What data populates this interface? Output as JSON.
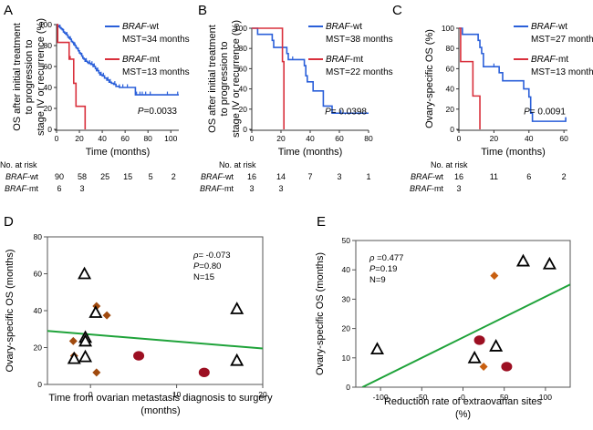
{
  "figure": {
    "chart_data": [
      {
        "panel": "A",
        "type": "line",
        "subtype": "kaplan-meier",
        "xlabel": "Time (months)",
        "ylabel_lines": [
          "OS after initial treatment",
          "to progression to",
          "stage IV or recurrence (%)"
        ],
        "xlim": [
          0,
          107
        ],
        "ylim": [
          0,
          100
        ],
        "xticks": [
          0,
          20,
          40,
          60,
          80,
          100
        ],
        "yticks": [
          0,
          20,
          40,
          60,
          80,
          100
        ],
        "series": [
          {
            "name": "BRAF-wt",
            "name_italic": "BRAF",
            "name_suffix": "-wt",
            "color": "#2a5fd9",
            "legend_note": "MST=34 months",
            "steps": [
              [
                0,
                100
              ],
              [
                1,
                99
              ],
              [
                2,
                98
              ],
              [
                3,
                97
              ],
              [
                4,
                96
              ],
              [
                5,
                95
              ],
              [
                6,
                93
              ],
              [
                7,
                92
              ],
              [
                8,
                91
              ],
              [
                9,
                90
              ],
              [
                10,
                88
              ],
              [
                11,
                87
              ],
              [
                12,
                86
              ],
              [
                13,
                84
              ],
              [
                14,
                83
              ],
              [
                15,
                81
              ],
              [
                16,
                80
              ],
              [
                17,
                78
              ],
              [
                18,
                77
              ],
              [
                19,
                75
              ],
              [
                20,
                73
              ],
              [
                21,
                72
              ],
              [
                22,
                70
              ],
              [
                23,
                68
              ],
              [
                24,
                67
              ],
              [
                25,
                65
              ],
              [
                27,
                64
              ],
              [
                28,
                63
              ],
              [
                30,
                62
              ],
              [
                32,
                60
              ],
              [
                34,
                58
              ],
              [
                35,
                56
              ],
              [
                37,
                54
              ],
              [
                38,
                52
              ],
              [
                40,
                51
              ],
              [
                42,
                49
              ],
              [
                44,
                47
              ],
              [
                46,
                45
              ],
              [
                48,
                44
              ],
              [
                50,
                43
              ],
              [
                52,
                41
              ],
              [
                55,
                40
              ],
              [
                68,
                40
              ],
              [
                69,
                33
              ],
              [
                107,
                33
              ]
            ],
            "censor_x": [
              3,
              6,
              9,
              12,
              16,
              19,
              22,
              26,
              29,
              31,
              33,
              36,
              39,
              41,
              45,
              47,
              51,
              55,
              58,
              62,
              70,
              73,
              75,
              78,
              82,
              97,
              106
            ]
          },
          {
            "name": "BRAF-mt",
            "name_italic": "BRAF",
            "name_suffix": "-mt",
            "color": "#d9303c",
            "legend_note": "MST=13 months",
            "steps": [
              [
                0,
                100
              ],
              [
                1,
                83
              ],
              [
                10,
                83
              ],
              [
                11,
                67
              ],
              [
                14,
                67
              ],
              [
                15,
                44
              ],
              [
                16,
                44
              ],
              [
                17,
                22
              ],
              [
                25,
                22
              ],
              [
                25,
                0
              ]
            ],
            "censor_x": [
              12
            ]
          }
        ],
        "p_label": "P",
        "p_value": "=0.0033",
        "risk_table": {
          "title": "No. at risk",
          "rows": [
            {
              "italic": "BRAF",
              "suffix": "-wt",
              "x": [
                0,
                20,
                40,
                60,
                80,
                100
              ],
              "values": [
                "90",
                "58",
                "25",
                "15",
                "5",
                "2"
              ]
            },
            {
              "italic": "BRAF",
              "suffix": "-mt",
              "x": [
                0,
                20
              ],
              "values": [
                "6",
                "3"
              ]
            }
          ]
        }
      },
      {
        "panel": "B",
        "type": "line",
        "subtype": "kaplan-meier",
        "xlabel": "Time (months)",
        "ylabel_lines": [
          "OS after initial treatment",
          "to progression to",
          "stage IV or recurrence (%)"
        ],
        "xlim": [
          0,
          80
        ],
        "ylim": [
          0,
          100
        ],
        "xticks": [
          0,
          20,
          40,
          60,
          80
        ],
        "yticks": [
          0,
          20,
          40,
          60,
          80,
          100
        ],
        "series": [
          {
            "name": "BRAF-wt",
            "name_italic": "BRAF",
            "name_suffix": "-wt",
            "color": "#2a5fd9",
            "legend_note": "MST=38 months",
            "steps": [
              [
                0,
                100
              ],
              [
                4,
                94
              ],
              [
                13,
                94
              ],
              [
                14,
                88
              ],
              [
                15,
                81
              ],
              [
                23,
                81
              ],
              [
                24,
                75
              ],
              [
                25,
                69
              ],
              [
                35,
                69
              ],
              [
                36,
                63
              ],
              [
                37,
                53
              ],
              [
                38,
                47
              ],
              [
                41,
                47
              ],
              [
                42,
                38
              ],
              [
                49,
                38
              ],
              [
                49,
                23
              ],
              [
                54,
                23
              ],
              [
                55,
                16
              ],
              [
                80,
                16
              ]
            ],
            "censor_x": [
              28,
              61
            ]
          },
          {
            "name": "BRAF-mt",
            "name_italic": "BRAF",
            "name_suffix": "-mt",
            "color": "#d9303c",
            "legend_note": "MST=22 months",
            "steps": [
              [
                0,
                100
              ],
              [
                21,
                100
              ],
              [
                21,
                67
              ],
              [
                22,
                67
              ],
              [
                22,
                0
              ]
            ],
            "censor_x": []
          }
        ],
        "p_label": "P",
        "p_value": "= 0.0398",
        "risk_table": {
          "title": "No. at risk",
          "rows": [
            {
              "italic": "BRAF",
              "suffix": "-wt",
              "x": [
                0,
                20,
                40,
                60,
                80
              ],
              "values": [
                "16",
                "14",
                "7",
                "3",
                "1"
              ]
            },
            {
              "italic": "BRAF",
              "suffix": "-mt",
              "x": [
                0,
                20
              ],
              "values": [
                "3",
                "3"
              ]
            }
          ]
        }
      },
      {
        "panel": "C",
        "type": "line",
        "subtype": "kaplan-meier",
        "xlabel": "Time (months)",
        "ylabel_lines": [
          "Ovary-specific OS (%)"
        ],
        "xlim": [
          0,
          62
        ],
        "ylim": [
          0,
          100
        ],
        "xticks": [
          0,
          20,
          40,
          60
        ],
        "yticks": [
          0,
          20,
          40,
          60,
          80,
          100
        ],
        "series": [
          {
            "name": "BRAF-wt",
            "name_italic": "BRAF",
            "name_suffix": "-wt",
            "color": "#2a5fd9",
            "legend_note": "MST=27 months",
            "steps": [
              [
                0,
                100
              ],
              [
                2,
                94
              ],
              [
                11,
                94
              ],
              [
                11,
                88
              ],
              [
                12,
                81
              ],
              [
                13,
                75
              ],
              [
                14,
                62
              ],
              [
                22,
                62
              ],
              [
                23,
                56
              ],
              [
                25,
                56
              ],
              [
                25,
                48
              ],
              [
                36,
                48
              ],
              [
                37,
                40
              ],
              [
                39,
                40
              ],
              [
                40,
                32
              ],
              [
                41,
                16
              ],
              [
                42,
                8
              ],
              [
                61,
                8
              ],
              [
                61,
                12
              ]
            ],
            "censor_x": [
              20
            ]
          },
          {
            "name": "BRAF-mt",
            "name_italic": "BRAF",
            "name_suffix": "-mt",
            "color": "#d9303c",
            "legend_note": "MST=13 months",
            "steps": [
              [
                0,
                100
              ],
              [
                1,
                67
              ],
              [
                8,
                67
              ],
              [
                8,
                33
              ],
              [
                12,
                33
              ],
              [
                12,
                0
              ]
            ],
            "censor_x": []
          }
        ],
        "p_label": "P",
        "p_value": "= 0.0091",
        "risk_table": {
          "title": "No. at risk",
          "rows": [
            {
              "italic": "BRAF",
              "suffix": "-wt",
              "x": [
                0,
                20,
                40,
                60
              ],
              "values": [
                "16",
                "11",
                "6",
                "2"
              ]
            },
            {
              "italic": "BRAF",
              "suffix": "-mt",
              "x": [
                0
              ],
              "values": [
                "3"
              ]
            }
          ]
        }
      },
      {
        "panel": "D",
        "type": "scatter",
        "xlabel_lines": [
          "Time from ovarian metastasis diagnosis to surgery",
          "(months)"
        ],
        "ylabel": "Ovary-specific OS (months)",
        "xlim": [
          -5,
          20
        ],
        "ylim": [
          0,
          80
        ],
        "xticks": [
          0,
          10,
          20
        ],
        "yticks": [
          0,
          20,
          40,
          60,
          80
        ],
        "stats": {
          "rho_label": "ρ",
          "rho": "= -0.073",
          "p_label": "P",
          "p": "=0.80",
          "n": "N=15"
        },
        "regression": {
          "x": [
            -5,
            20
          ],
          "y": [
            29,
            19.5
          ],
          "color": "#1fa33a"
        },
        "points": [
          {
            "shape": "triangle",
            "x": -0.7,
            "y": 60
          },
          {
            "shape": "triangle",
            "x": 0.6,
            "y": 39
          },
          {
            "shape": "triangle",
            "x": -0.6,
            "y": 25.5
          },
          {
            "shape": "triangle",
            "x": -0.6,
            "y": 23.5
          },
          {
            "shape": "triangle",
            "x": -1.9,
            "y": 14
          },
          {
            "shape": "triangle",
            "x": -0.6,
            "y": 15
          },
          {
            "shape": "triangle",
            "x": 17,
            "y": 41
          },
          {
            "shape": "triangle",
            "x": 17,
            "y": 13
          },
          {
            "shape": "diamond",
            "x": 0.7,
            "y": 42.5
          },
          {
            "shape": "diamond",
            "x": 1.9,
            "y": 37.5
          },
          {
            "shape": "diamond",
            "x": -2.0,
            "y": 23.5
          },
          {
            "shape": "diamond",
            "x": -1.9,
            "y": 15.5
          },
          {
            "shape": "diamond",
            "x": 0.7,
            "y": 6.5
          },
          {
            "shape": "circle",
            "x": 5.6,
            "y": 15.5
          },
          {
            "shape": "circle",
            "x": 13.2,
            "y": 6.5
          }
        ],
        "colors": {
          "triangle": "#000000",
          "diamond": "#a04a0e",
          "circle": "#9c0f22"
        }
      },
      {
        "panel": "E",
        "type": "scatter",
        "xlabel_lines": [
          "Reduction rate of extraovarian sites",
          "(%)"
        ],
        "ylabel": "Ovary-specific OS (months)",
        "xlim": [
          -130,
          130
        ],
        "ylim": [
          0,
          50
        ],
        "xticks": [
          -100,
          -50,
          0,
          50,
          100
        ],
        "yticks": [
          0,
          10,
          20,
          30,
          40,
          50
        ],
        "stats": {
          "rho_label": "ρ",
          "rho": " =0.477",
          "p_label": "P",
          "p": "=0.19",
          "n": "N=9"
        },
        "regression": {
          "x": [
            -122,
            130
          ],
          "y": [
            0,
            35
          ],
          "color": "#1fa33a"
        },
        "points": [
          {
            "shape": "triangle",
            "x": -104,
            "y": 13
          },
          {
            "shape": "triangle",
            "x": 14,
            "y": 10
          },
          {
            "shape": "triangle",
            "x": 40,
            "y": 14
          },
          {
            "shape": "triangle",
            "x": 73,
            "y": 43
          },
          {
            "shape": "triangle",
            "x": 105,
            "y": 42
          },
          {
            "shape": "diamond",
            "x": 38,
            "y": 38
          },
          {
            "shape": "diamond",
            "x": 25,
            "y": 7
          },
          {
            "shape": "circle",
            "x": 20,
            "y": 16
          },
          {
            "shape": "circle",
            "x": 53,
            "y": 7
          }
        ],
        "colors": {
          "triangle": "#000000",
          "diamond": "#c85f10",
          "circle": "#9c0f22"
        }
      }
    ]
  }
}
